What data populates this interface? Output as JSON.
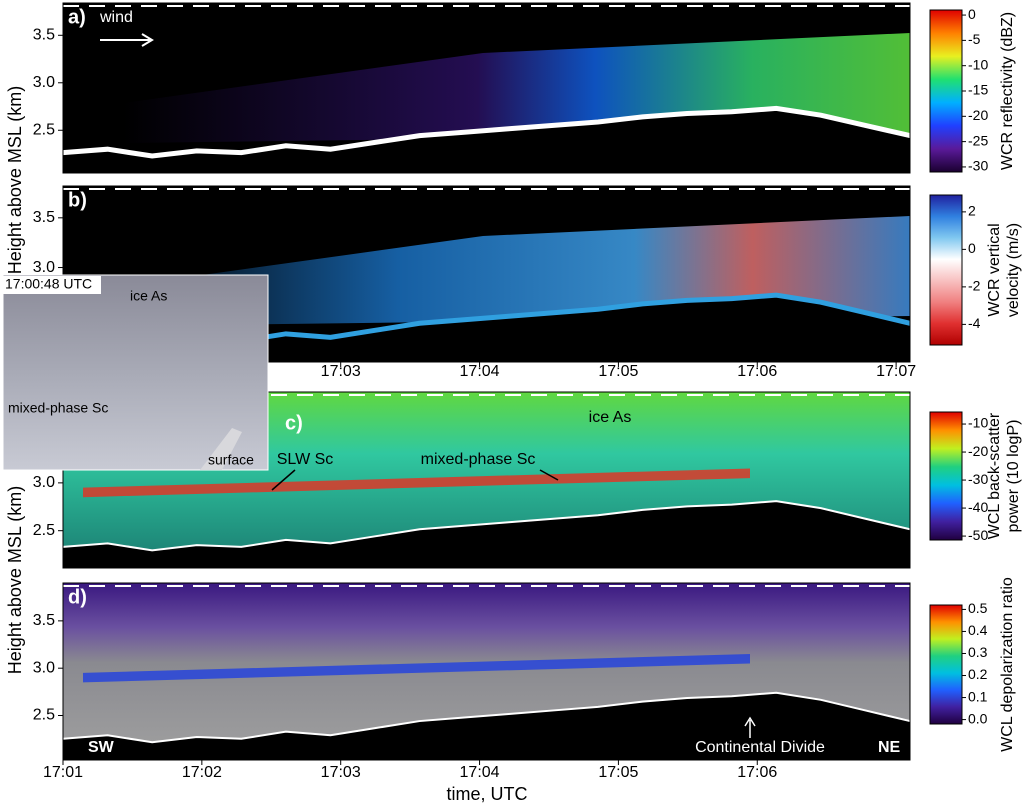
{
  "chart_data": [
    {
      "type": "heatmap",
      "panel_label": "a)",
      "annotations": [
        "wind"
      ],
      "xlim": [
        1021,
        1027.1
      ],
      "ylim": [
        2.05,
        3.84
      ],
      "yticks": [
        2.5,
        {
          "value": 3,
          "label": "3.0"
        },
        3.5
      ],
      "colorbar": {
        "label": [
          "WCR reflectivity (dBZ)"
        ],
        "lim": [
          -31,
          1
        ],
        "ticks": [
          0,
          -5,
          -10,
          -15,
          -20,
          -25,
          -30
        ],
        "colormap": [
          "#1a0030",
          "#5a1a9a",
          "#2040ff",
          "#00b0ff",
          "#20e070",
          "#e8f020",
          "#ff8000",
          "#e00000"
        ]
      }
    },
    {
      "type": "heatmap",
      "panel_label": "b)",
      "xlim": [
        1021,
        1027.1
      ],
      "ylim": [
        2.05,
        3.82
      ],
      "yticks": [
        {
          "value": 3,
          "label": "3.0"
        },
        3.5
      ],
      "xticks": [
        {
          "value": 1023,
          "label": "17:03"
        },
        {
          "value": 1024,
          "label": "17:04"
        },
        {
          "value": 1025,
          "label": "17:05"
        },
        {
          "value": 1026,
          "label": "17:06"
        },
        {
          "value": 1027,
          "label": "17:07"
        }
      ],
      "colorbar": {
        "label": [
          "WCR vertical",
          "velocity (m/s)"
        ],
        "lim": [
          -5.1,
          2.9
        ],
        "ticks": [
          2,
          0,
          -2,
          -4
        ],
        "colormap": [
          "#b00000",
          "#e03030",
          "#f08080",
          "#f8c0c0",
          "#ffffff",
          "#80c8f0",
          "#3080e0",
          "#2020a0"
        ]
      }
    },
    {
      "type": "heatmap",
      "panel_label": "c)",
      "annotations": [
        "ice As",
        "SLW Sc",
        "mixed-phase Sc"
      ],
      "xlim": [
        1021,
        1027.1
      ],
      "ylim": [
        2.11,
        3.95
      ],
      "yticks": [
        2.5,
        {
          "value": 3,
          "label": "3.0"
        }
      ],
      "colorbar": {
        "label": [
          "WCL back-scatter",
          "power (10 logP)"
        ],
        "lim": [
          -51.4,
          -5.7
        ],
        "ticks": [
          -10,
          -20,
          -30,
          -40,
          -50
        ],
        "colormap": [
          "#200040",
          "#4020a0",
          "#2060ff",
          "#00c0e0",
          "#20d080",
          "#c0f020",
          "#ff9000",
          "#e00000"
        ]
      }
    },
    {
      "type": "heatmap",
      "panel_label": "d)",
      "annotations": [
        "SW",
        "NE",
        "Continental Divide"
      ],
      "xlim": [
        1021,
        1027.1
      ],
      "ylim": [
        2.03,
        3.9
      ],
      "yticks": [
        2.5,
        {
          "value": 3,
          "label": "3.0"
        },
        3.5
      ],
      "xticks": [
        {
          "value": 1021,
          "label": "17:01"
        },
        {
          "value": 1022,
          "label": "17:02"
        },
        {
          "value": 1023,
          "label": "17:03"
        },
        {
          "value": 1024,
          "label": "17:04"
        },
        {
          "value": 1025,
          "label": "17:05"
        },
        {
          "value": 1026,
          "label": "17:06"
        }
      ],
      "colorbar": {
        "label": [
          "WCL depolarization ratio"
        ],
        "lim": [
          -0.02,
          0.52
        ],
        "ticks": [
          {
            "value": 0.5,
            "label": "0.5"
          },
          0.4,
          0.3,
          0.2,
          0.1,
          {
            "value": 0,
            "label": "0.0"
          }
        ],
        "colormap": [
          "#200040",
          "#4020a0",
          "#2060ff",
          "#00c0e0",
          "#20d080",
          "#c0f020",
          "#ff9000",
          "#e00000"
        ]
      }
    }
  ],
  "y_label": "Height above MSL (km)",
  "x_label": "time, UTC",
  "photo": {
    "time": "17:00:48 UTC",
    "labels": [
      "ice As",
      "mixed-phase Sc",
      "surface"
    ]
  }
}
